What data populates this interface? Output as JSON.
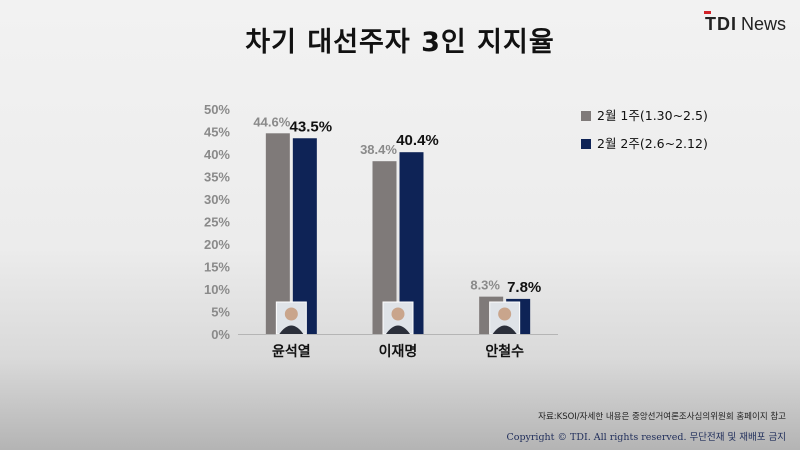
{
  "header": {
    "title": "차기 대선주자 3인 지지율",
    "logo_tdi": "TDI",
    "logo_news": "News"
  },
  "chart_data": {
    "type": "bar",
    "title": "차기 대선주자 3인 지지율",
    "categories": [
      "윤석열",
      "이재명",
      "안철수"
    ],
    "series": [
      {
        "name": "2월 1주(1.30~2.5)",
        "values": [
          44.6,
          38.4,
          8.3
        ],
        "labels": [
          "44.6%",
          "38.4%",
          "8.3%"
        ],
        "color": "#7f7a79"
      },
      {
        "name": "2월 2주(2.6~2.12)",
        "values": [
          43.5,
          40.4,
          7.8
        ],
        "labels": [
          "43.5%",
          "40.4%",
          "7.8%"
        ],
        "color": "#0e2356"
      }
    ],
    "ylim": [
      0,
      50
    ],
    "yticks": [
      "0%",
      "5%",
      "10%",
      "15%",
      "20%",
      "25%",
      "30%",
      "35%",
      "40%",
      "45%",
      "50%"
    ],
    "grid": false,
    "legend": "top-right",
    "xlabel": "",
    "ylabel": ""
  },
  "footer": {
    "source": "자료:KSOI/자세한 내용은 중앙선거여론조사심의위원회 홈페이지 참고",
    "copyright": "Copyright © TDI. All rights reserved. 무단전재 및 재배포 금지"
  }
}
